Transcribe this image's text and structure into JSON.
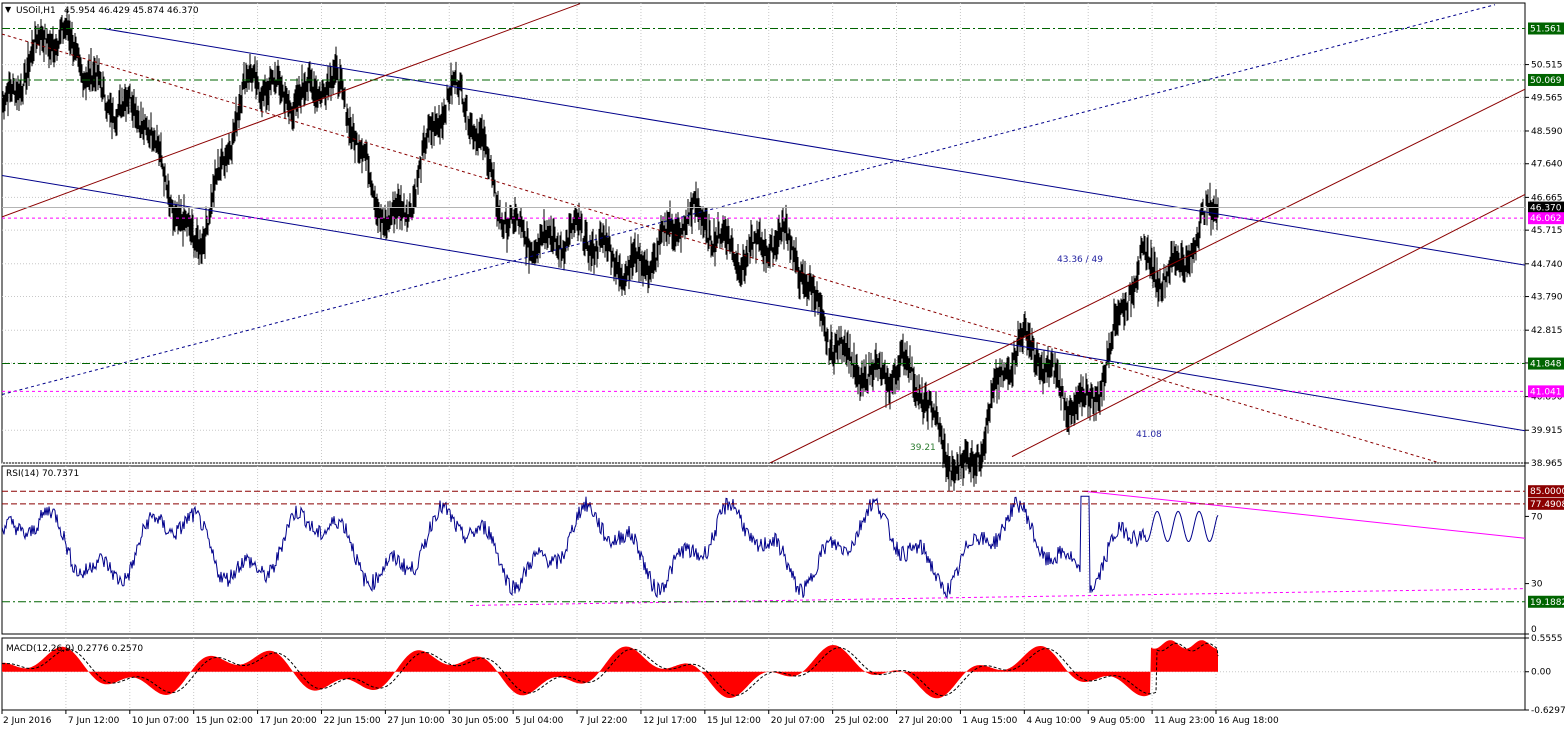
{
  "header": {
    "symbol_label": "USOil,H1",
    "ohlc_label": "45.954 46.429 45.874 46.370"
  },
  "chart_data": [
    {
      "type": "line",
      "title": "USOil,H1",
      "symbol": "USOil",
      "timeframe": "H1",
      "ohlc": {
        "open": 45.954,
        "high": 46.429,
        "low": 45.874,
        "close": 46.37
      },
      "ylim": [
        38.965,
        52.3
      ],
      "x_tick_labels": [
        "2 Jun 2016",
        "7 Jun 12:00",
        "10 Jun 07:00",
        "15 Jun 02:00",
        "17 Jun 20:00",
        "22 Jun 15:00",
        "27 Jun 10:00",
        "30 Jun 05:00",
        "5 Jul 04:00",
        "7 Jul 22:00",
        "12 Jul 17:00",
        "15 Jul 12:00",
        "20 Jul 07:00",
        "25 Jul 02:00",
        "27 Jul 20:00",
        "1 Aug 15:00",
        "4 Aug 10:00",
        "9 Aug 05:00",
        "11 Aug 23:00",
        "16 Aug 18:00"
      ],
      "y_tick_labels": [
        "50.515",
        "49.565",
        "48.590",
        "47.640",
        "46.665",
        "45.715",
        "44.740",
        "43.790",
        "42.815",
        "41.865",
        "40.890",
        "39.915",
        "38.965"
      ],
      "key_points": [
        {
          "x": "2 Jun 2016",
          "y": 49.1
        },
        {
          "x": "7 Jun 12:00",
          "y": 51.56
        },
        {
          "x": "10 Jun 07:00",
          "y": 48.8
        },
        {
          "x": "15 Jun 02:00",
          "y": 46.0
        },
        {
          "x": "17 Jun 20:00",
          "y": 49.6
        },
        {
          "x": "22 Jun 15:00",
          "y": 50.3
        },
        {
          "x": "27 Jun 10:00",
          "y": 46.1
        },
        {
          "x": "30 Jun 05:00",
          "y": 49.4
        },
        {
          "x": "5 Jul 04:00",
          "y": 46.2
        },
        {
          "x": "7 Jul 22:00",
          "y": 45.0
        },
        {
          "x": "12 Jul 17:00",
          "y": 45.2
        },
        {
          "x": "15 Jul 12:00",
          "y": 45.6
        },
        {
          "x": "20 Jul 07:00",
          "y": 45.5
        },
        {
          "x": "25 Jul 02:00",
          "y": 42.7
        },
        {
          "x": "27 Jul 20:00",
          "y": 41.3
        },
        {
          "x": "1 Aug 15:00",
          "y": 39.3
        },
        {
          "x": "4 Aug 10:00",
          "y": 41.9
        },
        {
          "x": "9 Aug 05:00",
          "y": 41.1
        },
        {
          "x": "11 Aug 23:00",
          "y": 44.5
        },
        {
          "x": "16 Aug 18:00",
          "y": 46.37
        }
      ],
      "horizontal_levels": [
        {
          "value": "51.561",
          "style": "green-dashdot",
          "tag_color": "#006400"
        },
        {
          "value": "50.069",
          "style": "green-dashdot",
          "tag_color": "#006400"
        },
        {
          "value": "46.370",
          "style": "grey-solid",
          "tag_color": "#000000"
        },
        {
          "value": "46.062",
          "style": "magenta-dashed",
          "tag_color": "#ff00ff"
        },
        {
          "value": "41.848",
          "style": "green-dashdot",
          "tag_color": "#006400"
        },
        {
          "value": "41.041",
          "style": "magenta-dashed",
          "tag_color": "#ff00ff"
        }
      ],
      "annotations": [
        {
          "text": "43.36 / 49",
          "color": "#1f1fa0"
        },
        {
          "text": "39.21",
          "color": "#2e7d32"
        },
        {
          "text": "41.08",
          "color": "#1f1fa0"
        }
      ],
      "grid": true,
      "colors": {
        "price": "#000000",
        "channel_down": "#00008b",
        "channel_up": "#8b0000",
        "support": "#006400",
        "pivot": "#ff00ff"
      }
    },
    {
      "type": "line",
      "title": "RSI(14) 70.7371",
      "indicator": "RSI",
      "period": 14,
      "current_value": 70.7371,
      "ylim": [
        0,
        100
      ],
      "y_tick_labels": [
        "70",
        "30",
        "0"
      ],
      "levels": [
        {
          "value": "85.0000",
          "tag_color": "#8b0000"
        },
        {
          "value": "77.4908",
          "tag_color": "#8b0000"
        },
        {
          "value": "19.1882",
          "tag_color": "#006400"
        }
      ],
      "colors": {
        "line": "#00008b",
        "trend": "#ff00ff"
      }
    },
    {
      "type": "bar",
      "title": "MACD(12,26,9) 0.2776 0.2570",
      "indicator": "MACD",
      "params": [
        12,
        26,
        9
      ],
      "macd": 0.2776,
      "signal": 0.257,
      "ylim": [
        -0.6297,
        0.5555
      ],
      "y_tick_labels": [
        "0.5555",
        "0.00",
        "-0.6297"
      ],
      "colors": {
        "histogram": "#ff0000",
        "signal": "#000000"
      }
    }
  ]
}
